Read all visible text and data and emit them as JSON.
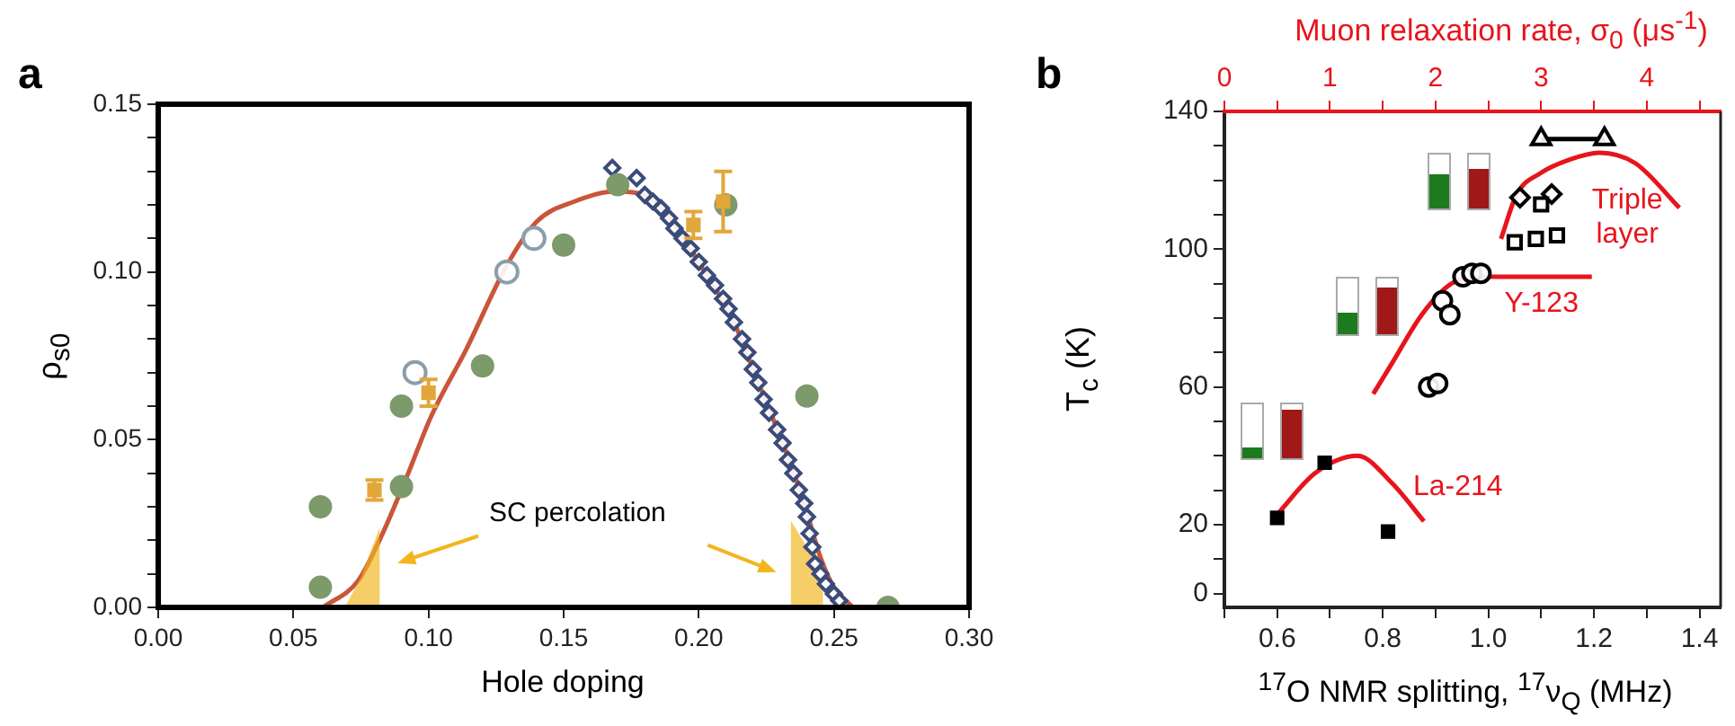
{
  "chart_data": [
    {
      "type": "scatter",
      "title": "a",
      "xlabel": "Hole doping",
      "ylabel": "ρ$_{s0}$",
      "annotations": [
        "SC percolation"
      ],
      "xlim": [
        0,
        0.3
      ],
      "ylim": [
        0,
        0.15
      ],
      "xticks": [
        {
          "value": 0,
          "label": "0.00"
        },
        {
          "value": 0.05,
          "label": "0.05"
        },
        {
          "value": 0.1,
          "label": "0.10"
        },
        {
          "value": 0.15,
          "label": "0.15"
        },
        {
          "value": 0.2,
          "label": "0.20"
        },
        {
          "value": 0.25,
          "label": "0.25"
        },
        {
          "value": 0.3,
          "label": "0.30"
        }
      ],
      "yticks": [
        {
          "value": 0,
          "label": "0.00"
        },
        {
          "value": 0.01,
          "label": null
        },
        {
          "value": 0.02,
          "label": null
        },
        {
          "value": 0.03,
          "label": null
        },
        {
          "value": 0.04,
          "label": null
        },
        {
          "value": 0.05,
          "label": "0.05"
        },
        {
          "value": 0.06,
          "label": null
        },
        {
          "value": 0.07,
          "label": null
        },
        {
          "value": 0.08,
          "label": null
        },
        {
          "value": 0.09,
          "label": null
        },
        {
          "value": 0.1,
          "label": "0.10"
        },
        {
          "value": 0.11,
          "label": null
        },
        {
          "value": 0.12,
          "label": null
        },
        {
          "value": 0.13,
          "label": null
        },
        {
          "value": 0.14,
          "label": null
        },
        {
          "value": 0.15,
          "label": "0.15"
        }
      ],
      "grid": false,
      "legend": false,
      "series": [
        {
          "type": "line",
          "color": "#c9553a",
          "marker": "none",
          "x": [
            0.061,
            0.074,
            0.083,
            0.092,
            0.101,
            0.114,
            0.129,
            0.14,
            0.154,
            0.169,
            0.18,
            0.203,
            0.213,
            0.222,
            0.231,
            0.239,
            0.245,
            0.25,
            0.257
          ],
          "values": [
            0.0,
            0.008,
            0.022,
            0.039,
            0.057,
            0.077,
            0.102,
            0.115,
            0.121,
            0.124,
            0.123,
            0.099,
            0.085,
            0.067,
            0.049,
            0.031,
            0.015,
            0.006,
            0.0
          ]
        },
        {
          "type": "area",
          "color": "#f2b51c",
          "marker": "none",
          "x": [
            0.069,
            0.075,
            0.082
          ],
          "values": [
            0.0,
            0.009,
            0.024
          ]
        },
        {
          "type": "area",
          "color": "#f2b51c",
          "marker": "none",
          "x": [
            0.234,
            0.24,
            0.246
          ],
          "values": [
            0.026,
            0.018,
            0.007
          ]
        },
        {
          "color": "#3b4b7a",
          "marker": "diamond",
          "x": [
            0.168,
            0.177,
            0.18,
            0.183,
            0.186,
            0.189,
            0.191,
            0.194,
            0.197,
            0.2,
            0.203,
            0.206,
            0.209,
            0.211,
            0.213,
            0.216,
            0.218,
            0.22,
            0.222,
            0.224,
            0.226,
            0.229,
            0.231,
            0.233,
            0.235,
            0.237,
            0.239,
            0.24,
            0.241,
            0.242,
            0.243,
            0.245,
            0.247,
            0.25,
            0.252
          ],
          "values": [
            0.131,
            0.128,
            0.123,
            0.121,
            0.119,
            0.116,
            0.113,
            0.11,
            0.107,
            0.103,
            0.099,
            0.096,
            0.092,
            0.089,
            0.085,
            0.08,
            0.076,
            0.071,
            0.067,
            0.062,
            0.058,
            0.053,
            0.049,
            0.044,
            0.04,
            0.035,
            0.031,
            0.027,
            0.022,
            0.018,
            0.013,
            0.01,
            0.007,
            0.004,
            0.002
          ]
        },
        {
          "color": "#7d9a6b",
          "marker": "circle",
          "x": [
            0.06,
            0.06,
            0.09,
            0.09,
            0.12,
            0.15,
            0.17,
            0.21,
            0.24,
            0.27
          ],
          "values": [
            0.03,
            0.006,
            0.06,
            0.036,
            0.072,
            0.108,
            0.126,
            0.12,
            0.063,
            0.0
          ]
        },
        {
          "color": "#8c9dab",
          "marker": "circle",
          "x": [
            0.095,
            0.129,
            0.139
          ],
          "values": [
            0.07,
            0.1,
            0.11
          ]
        },
        {
          "color": "#e2a73a",
          "marker": "square",
          "x": [
            0.08,
            0.1,
            0.198,
            0.209
          ],
          "values": [
            0.035,
            0.064,
            0.114,
            0.121
          ],
          "errors": [
            0.003,
            0.004,
            0.004,
            0.009
          ]
        }
      ]
    },
    {
      "type": "scatter",
      "title": "b",
      "xlabel": "$^{17}$O NMR splitting, $^{17}$ν$_{Q}$ (MHz)",
      "ylabel": "T$_{c}$ (K)",
      "x2label": "Muon relaxation rate, σ$_{0}$  (μs$^{-1}$)",
      "xlim": [
        0.5,
        1.44
      ],
      "ylim": [
        -4,
        140
      ],
      "x2lim": [
        0,
        4.7
      ],
      "xticks": [
        {
          "value": 0.5,
          "label": null
        },
        0.6,
        {
          "value": 0.7,
          "label": null
        },
        0.8,
        {
          "value": 0.9,
          "label": null
        },
        {
          "value": 1,
          "label": "1.0"
        },
        {
          "value": 1.1,
          "label": null
        },
        1.2,
        {
          "value": 1.3,
          "label": null
        },
        1.4
      ],
      "x2ticks": [
        0,
        {
          "value": 0.5,
          "label": null
        },
        1,
        {
          "value": 1.5,
          "label": null
        },
        2,
        {
          "value": 2.5,
          "label": null
        },
        3,
        {
          "value": 3.5,
          "label": null
        },
        4,
        {
          "value": 4.5,
          "label": null
        }
      ],
      "yticks": [
        0,
        {
          "value": 10,
          "label": null
        },
        20,
        {
          "value": 30,
          "label": null
        },
        {
          "value": 40,
          "label": null
        },
        {
          "value": 50,
          "label": null
        },
        60,
        {
          "value": 70,
          "label": null
        },
        {
          "value": 80,
          "label": null
        },
        {
          "value": 90,
          "label": null
        },
        100,
        {
          "value": 110,
          "label": null
        },
        {
          "value": 120,
          "label": null
        },
        {
          "value": 130,
          "label": null
        },
        140
      ],
      "grid": false,
      "legend": false,
      "series": [
        {
          "name": "La-214",
          "type": "line",
          "axis": "x2",
          "color": "#e8141c",
          "marker": "none",
          "x": [
            0.5,
            0.86,
            1.26,
            1.59,
            1.89
          ],
          "values": [
            23,
            35,
            40,
            32,
            21
          ]
        },
        {
          "name": "Y-123",
          "type": "line",
          "axis": "x2",
          "color": "#e8141c",
          "marker": "none",
          "x": [
            1.41,
            1.59,
            1.87,
            2.15,
            2.43,
            2.99,
            3.48
          ],
          "values": [
            58,
            67,
            81,
            90,
            92,
            92,
            92
          ]
        },
        {
          "name": "Triple layer",
          "type": "line",
          "axis": "x2",
          "color": "#e8141c",
          "marker": "none",
          "x": [
            2.62,
            2.77,
            2.99,
            3.27,
            3.55,
            3.89,
            4.31
          ],
          "values": [
            103,
            116,
            122,
            126,
            128,
            125,
            112
          ]
        },
        {
          "color": "#000000",
          "marker": "square",
          "x": [
            0.6,
            0.69,
            0.81
          ],
          "values": [
            22,
            38,
            18
          ]
        },
        {
          "color": "#000000",
          "marker": "circle",
          "x": [
            0.887,
            0.904,
            0.913,
            0.927,
            0.952,
            0.969,
            0.986
          ],
          "values": [
            60,
            61,
            85,
            81,
            92,
            93,
            93
          ]
        },
        {
          "color": "#000000",
          "marker": "diamond",
          "x": [
            1.06,
            1.12
          ],
          "values": [
            115,
            116
          ]
        },
        {
          "color": "#000000",
          "marker": "square",
          "x": [
            1.05,
            1.09,
            1.1,
            1.13
          ],
          "values": [
            102,
            103,
            113,
            104
          ]
        },
        {
          "type": "line",
          "color": "#000000",
          "marker": "triangle",
          "x": [
            1.1,
            1.22
          ],
          "values": [
            132,
            132
          ]
        }
      ]
    }
  ]
}
